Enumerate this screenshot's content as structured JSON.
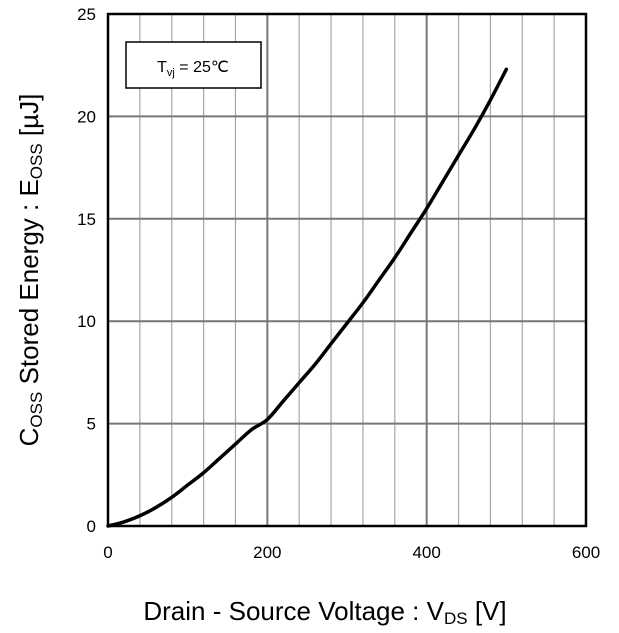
{
  "chart_data": {
    "type": "line",
    "xlabel": {
      "main": "Drain - Source Voltage : V",
      "sub": "DS",
      "tail": " [V]"
    },
    "ylabel": {
      "lead": "C",
      "sub": "OSS",
      "main": " Stored Energy : E",
      "sub2": "OSS",
      "tail": " [µJ]"
    },
    "annotation": {
      "lead": "T",
      "sub": "vj",
      "tail": " = 25℃"
    },
    "xlim": [
      0,
      600
    ],
    "ylim": [
      0,
      25
    ],
    "x_ticks": [
      0,
      200,
      400,
      600
    ],
    "y_ticks": [
      0,
      5,
      10,
      15,
      20,
      25
    ],
    "x_minor_step": 40,
    "y_minor_step": 5,
    "grid": true,
    "series": [
      {
        "x": [
          0,
          20,
          40,
          60,
          80,
          100,
          120,
          140,
          160,
          180,
          200,
          220,
          240,
          260,
          280,
          300,
          320,
          340,
          360,
          380,
          400,
          420,
          440,
          460,
          480,
          500
        ],
        "y": [
          0,
          0.2,
          0.5,
          0.9,
          1.4,
          2.0,
          2.6,
          3.3,
          4.0,
          4.7,
          5.2,
          6.1,
          7.0,
          7.9,
          8.9,
          9.9,
          10.9,
          12.0,
          13.1,
          14.3,
          15.5,
          16.8,
          18.1,
          19.4,
          20.8,
          22.3
        ]
      }
    ]
  }
}
